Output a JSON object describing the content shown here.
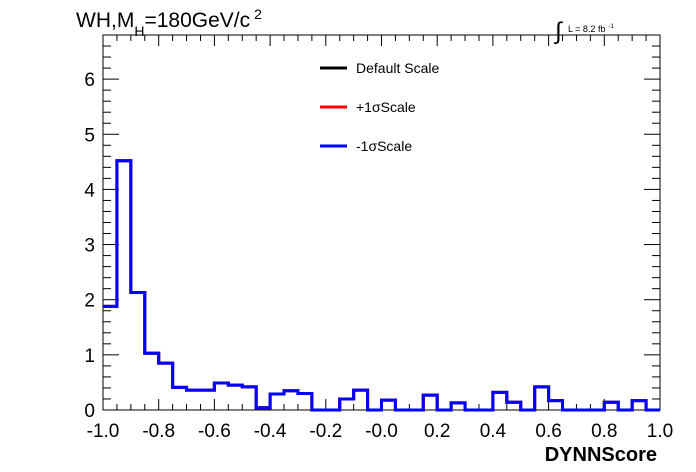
{
  "chart_data": {
    "type": "line",
    "title_main": "WH,M",
    "title_sub": "H",
    "title_rest": "=180GeV/c",
    "title_sup": "2",
    "lumi_integral": "∫",
    "lumi_text": "L = 8.2 fb",
    "lumi_sup": "-1",
    "xlabel": "DYNNScore",
    "ylabel": "",
    "xlim": [
      -1.0,
      1.0
    ],
    "ylim": [
      0,
      6.8
    ],
    "x_ticks": [
      -1.0,
      -0.8,
      -0.6,
      -0.4,
      -0.2,
      0.0,
      0.2,
      0.4,
      0.6,
      0.8,
      1.0
    ],
    "x_tick_labels": [
      "-1.0",
      "-0.8",
      "-0.6",
      "-0.4",
      "-0.2",
      "-0.0",
      "0.2",
      "0.4",
      "0.6",
      "0.8",
      "1.0"
    ],
    "y_ticks": [
      0,
      1,
      2,
      3,
      4,
      5,
      6
    ],
    "y_tick_labels": [
      "0",
      "1",
      "2",
      "3",
      "4",
      "5",
      "6"
    ],
    "bin_edges": [
      -1.0,
      -0.95,
      -0.9,
      -0.85,
      -0.8,
      -0.75,
      -0.7,
      -0.65,
      -0.6,
      -0.55,
      -0.5,
      -0.45,
      -0.4,
      -0.35,
      -0.3,
      -0.25,
      -0.2,
      -0.15,
      -0.1,
      -0.05,
      0.0,
      0.05,
      0.1,
      0.15,
      0.2,
      0.25,
      0.3,
      0.35,
      0.4,
      0.45,
      0.5,
      0.55,
      0.6,
      0.65,
      0.7,
      0.75,
      0.8,
      0.85,
      0.9,
      0.95,
      1.0
    ],
    "series": [
      {
        "name": "Default Scale",
        "color": "#000000",
        "values": [
          1.88,
          4.52,
          2.13,
          1.03,
          0.85,
          0.41,
          0.36,
          0.36,
          0.49,
          0.45,
          0.42,
          0.04,
          0.29,
          0.35,
          0.3,
          0.0,
          0.0,
          0.2,
          0.36,
          0.0,
          0.18,
          0.0,
          0.0,
          0.27,
          0.0,
          0.13,
          0.0,
          0.0,
          0.32,
          0.14,
          0.0,
          0.42,
          0.17,
          0.0,
          0.0,
          0.0,
          0.14,
          0.0,
          0.17,
          0.0
        ]
      },
      {
        "name": "+1σScale",
        "color": "#ff0000",
        "values": [
          1.88,
          4.52,
          2.13,
          1.03,
          0.85,
          0.41,
          0.36,
          0.36,
          0.49,
          0.45,
          0.42,
          0.04,
          0.29,
          0.35,
          0.3,
          0.0,
          0.0,
          0.2,
          0.36,
          0.0,
          0.18,
          0.0,
          0.0,
          0.27,
          0.0,
          0.13,
          0.0,
          0.0,
          0.32,
          0.14,
          0.0,
          0.42,
          0.17,
          0.0,
          0.0,
          0.0,
          0.14,
          0.0,
          0.17,
          0.0
        ]
      },
      {
        "name": "-1σScale",
        "color": "#0000ff",
        "values": [
          1.88,
          4.52,
          2.13,
          1.03,
          0.85,
          0.41,
          0.36,
          0.36,
          0.49,
          0.45,
          0.42,
          0.04,
          0.29,
          0.35,
          0.3,
          0.0,
          0.0,
          0.2,
          0.36,
          0.0,
          0.18,
          0.0,
          0.0,
          0.27,
          0.0,
          0.13,
          0.0,
          0.0,
          0.32,
          0.14,
          0.0,
          0.42,
          0.17,
          0.0,
          0.0,
          0.0,
          0.14,
          0.0,
          0.17,
          0.0
        ]
      }
    ],
    "legend_position": "top-center",
    "grid": false
  }
}
